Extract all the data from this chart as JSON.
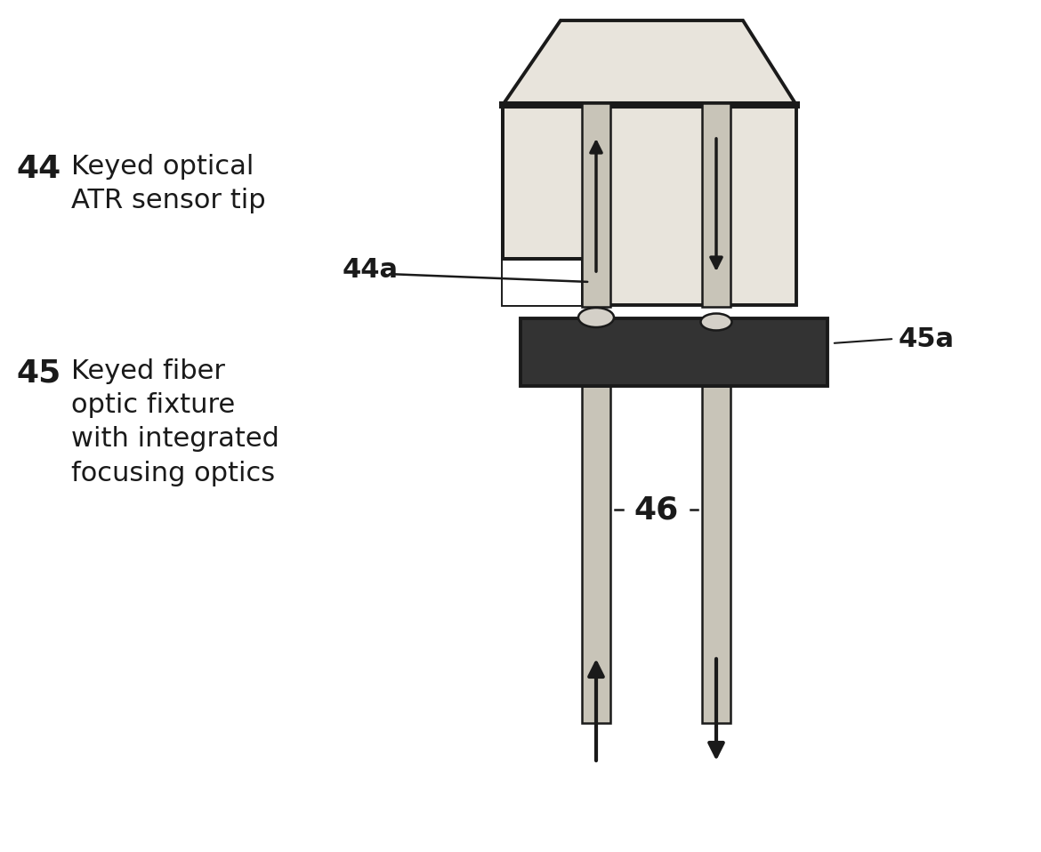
{
  "bg_color": "#ffffff",
  "line_color": "#1a1a1a",
  "dark_fill": "#333333",
  "light_fill": "#e8e4dc",
  "rod_fill": "#c8c4b8",
  "oval_fill": "#d4d0c8",
  "label_44_bold": "44",
  "label_44_text": "Keyed optical\nATR sensor tip",
  "label_44a": "44a",
  "label_45_bold": "45",
  "label_45_text": "Keyed fiber\noptic fixture\nwith integrated\nfocusing optics",
  "label_45a": "45a",
  "label_46": "46",
  "font_size_bold": 26,
  "font_size_text": 22,
  "font_size_small": 20
}
